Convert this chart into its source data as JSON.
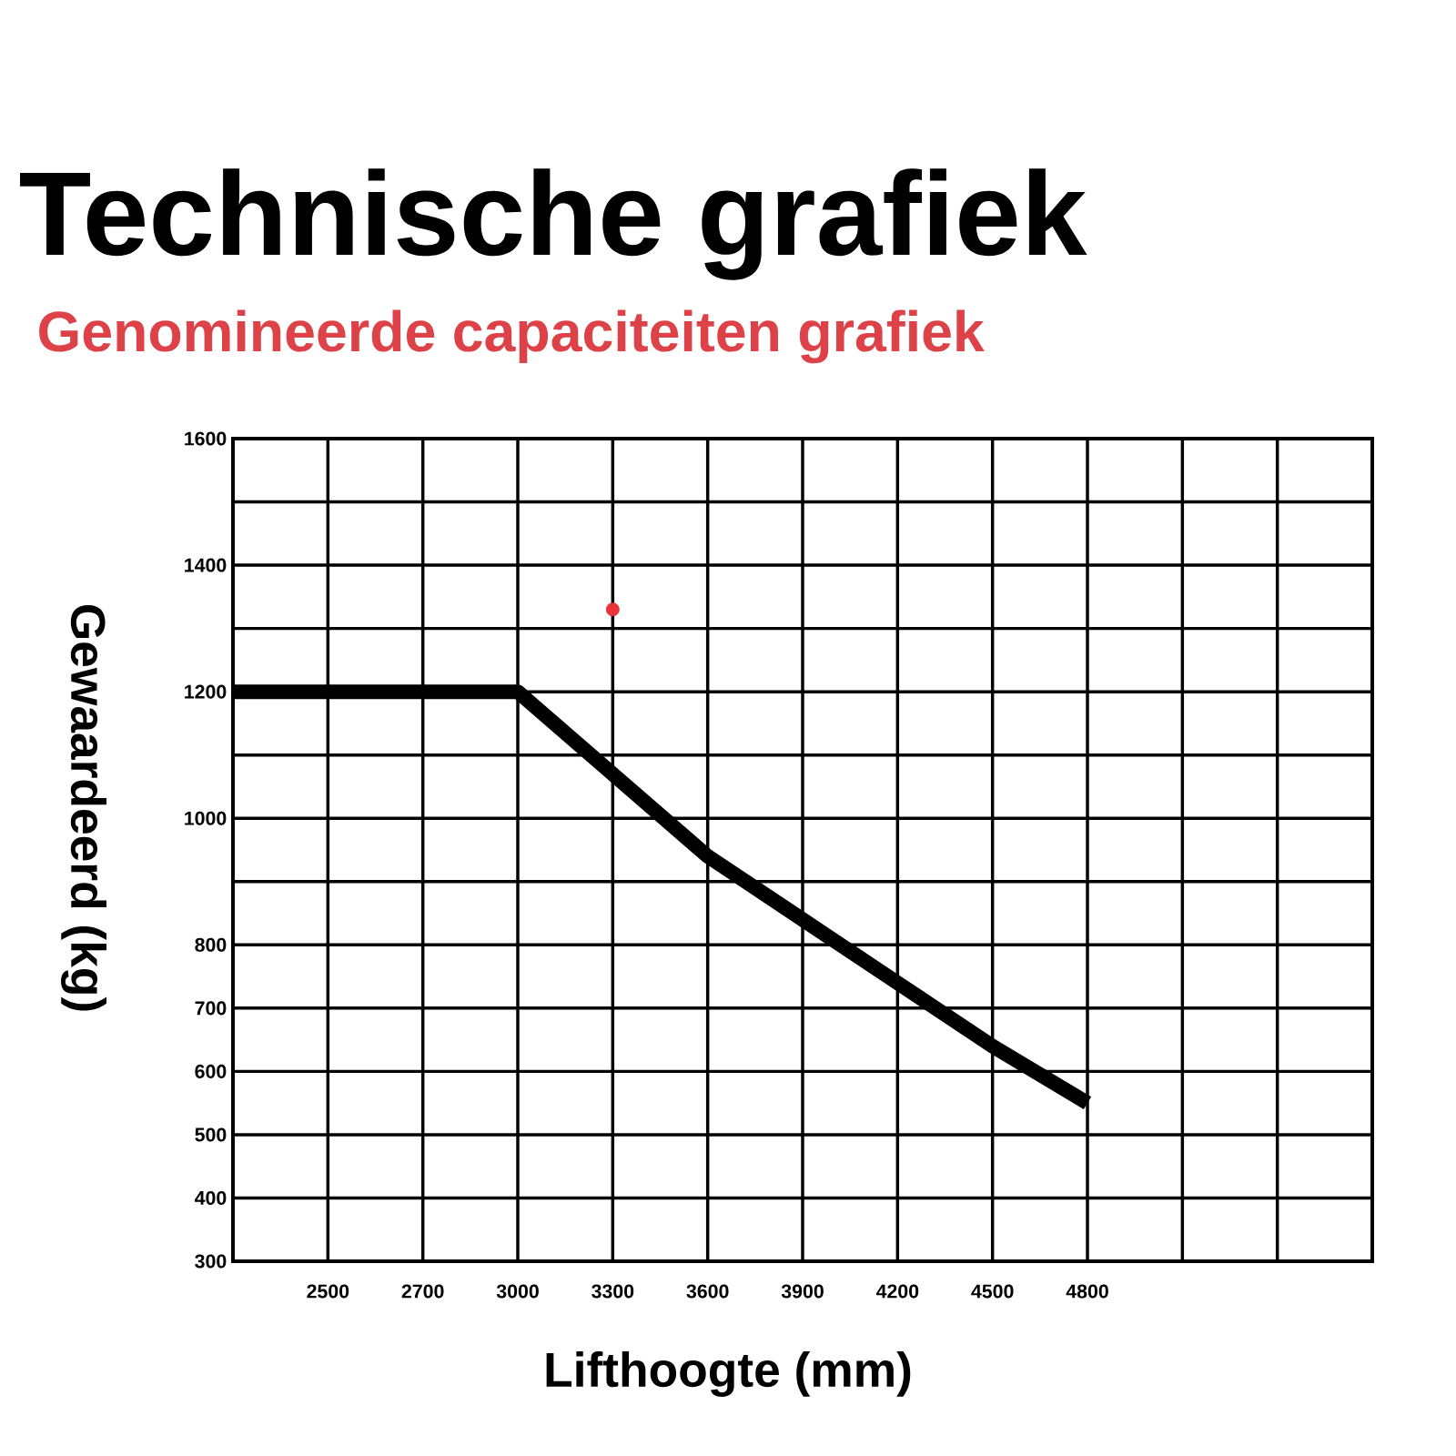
{
  "chart_data": {
    "type": "line",
    "title": "Technische grafiek",
    "subtitle": "Genomineerde capaciteiten grafiek",
    "xlabel": "Lifthoogte (mm)",
    "ylabel": "Gewaardeerd (kg)",
    "categories": [
      null,
      "2500",
      "2700",
      "3000",
      "3300",
      "3600",
      "3900",
      "4200",
      "4500",
      "4800",
      null,
      null,
      null
    ],
    "series": [
      {
        "color": "#000000",
        "values": [
          1200,
          1200,
          1200,
          1200,
          1070,
          940,
          840,
          740,
          640,
          550,
          null,
          null,
          null
        ]
      },
      {
        "type": "scatter",
        "color": "#e8343a",
        "marker": "circle",
        "values": [
          null,
          null,
          null,
          null,
          1330,
          null,
          null,
          null,
          null,
          null,
          null,
          null,
          null
        ]
      }
    ],
    "ylim": [
      300,
      1600
    ],
    "yticks": [
      300,
      400,
      500,
      600,
      700,
      800,
      {
        "value": 900,
        "label": null
      },
      1000,
      {
        "value": 1100,
        "label": null
      },
      1200,
      {
        "value": 1300,
        "label": null
      },
      1400,
      {
        "value": 1500,
        "label": null
      },
      1600
    ],
    "grid": true
  }
}
